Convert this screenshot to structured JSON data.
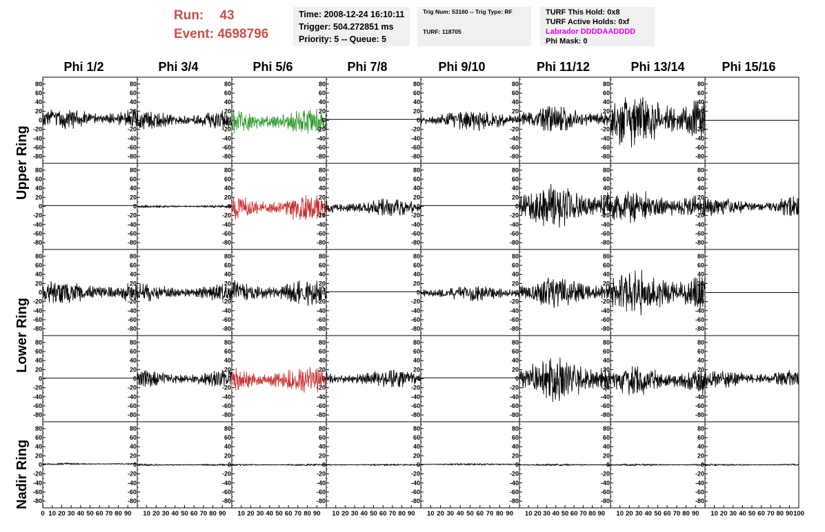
{
  "header": {
    "run_label": "Run:",
    "run_value": "43",
    "event_label": "Event:",
    "event_value": "4698796",
    "time": "Time: 2008-12-24 16:10:11",
    "trigger": "Trigger: 504.272851 ms",
    "priority": "Priority: 5 -- Queue: 5",
    "trig_line": "Trig Num: 53160 -- Trig Type: RF",
    "turf_line": "TURF: 118705",
    "turf_this_hold": "TURF This Hold: 0x8",
    "turf_active_holds": "TURF Active Holds: 0xf",
    "labrador": "Labrador DDDDAADDDD",
    "phi_mask": "Phi Mask: 0"
  },
  "chart_data": {
    "type": "line",
    "columns": [
      "Phi 1/2",
      "Phi 3/4",
      "Phi 5/6",
      "Phi 7/8",
      "Phi 9/10",
      "Phi 11/12",
      "Phi 13/14",
      "Phi 15/16"
    ],
    "rows": [
      "Upper Ring",
      "Upper Ring",
      "Lower Ring",
      "Lower Ring",
      "Nadir Ring"
    ],
    "row_labels": [
      "Upper Ring",
      "Lower Ring",
      "Nadir Ring"
    ],
    "xlim": [
      0,
      100
    ],
    "ylim": [
      -95,
      95
    ],
    "x_ticks": [
      0,
      10,
      20,
      30,
      40,
      50,
      60,
      70,
      80,
      90,
      100
    ],
    "x_tick_labels": [
      "0",
      "10",
      "20",
      "30",
      "40",
      "50",
      "60",
      "70",
      "80",
      "90",
      "100"
    ],
    "y_ticks": [
      80,
      60,
      40,
      20,
      0,
      -20,
      -40,
      -60,
      -80
    ],
    "y_tick_labels": [
      "80",
      "60",
      "40",
      "20",
      "0",
      "-20",
      "-40",
      "-60",
      "-80"
    ],
    "series_colors": {
      "normal": "#000000",
      "triggered": "#2e9a2e",
      "l2": "#c83232"
    },
    "panels": [
      {
        "row": 0,
        "col": 0,
        "amp": 20,
        "offset": 4,
        "color": "normal"
      },
      {
        "row": 0,
        "col": 1,
        "amp": 18,
        "offset": 0,
        "color": "normal"
      },
      {
        "row": 0,
        "col": 2,
        "amp": 25,
        "offset": -3,
        "color": "triggered"
      },
      {
        "row": 0,
        "col": 3,
        "amp": 0,
        "offset": 2,
        "color": "normal"
      },
      {
        "row": 0,
        "col": 4,
        "amp": 20,
        "offset": 0,
        "color": "normal"
      },
      {
        "row": 0,
        "col": 5,
        "amp": 24,
        "offset": 3,
        "color": "normal"
      },
      {
        "row": 0,
        "col": 6,
        "amp": 52,
        "offset": 0,
        "color": "normal"
      },
      {
        "row": 0,
        "col": 7,
        "amp": 0,
        "offset": 0,
        "color": "normal"
      },
      {
        "row": 1,
        "col": 0,
        "amp": 0,
        "offset": 2,
        "color": "normal"
      },
      {
        "row": 1,
        "col": 1,
        "amp": 3,
        "offset": 0,
        "color": "normal"
      },
      {
        "row": 1,
        "col": 2,
        "amp": 25,
        "offset": -3,
        "color": "l2"
      },
      {
        "row": 1,
        "col": 3,
        "amp": 17,
        "offset": -3,
        "color": "normal"
      },
      {
        "row": 1,
        "col": 4,
        "amp": 0,
        "offset": 2,
        "color": "normal"
      },
      {
        "row": 1,
        "col": 5,
        "amp": 45,
        "offset": 0,
        "color": "normal"
      },
      {
        "row": 1,
        "col": 6,
        "amp": 32,
        "offset": -2,
        "color": "normal"
      },
      {
        "row": 1,
        "col": 7,
        "amp": 18,
        "offset": 0,
        "color": "normal"
      },
      {
        "row": 2,
        "col": 0,
        "amp": 22,
        "offset": 0,
        "color": "normal"
      },
      {
        "row": 2,
        "col": 1,
        "amp": 16,
        "offset": 0,
        "color": "normal"
      },
      {
        "row": 2,
        "col": 2,
        "amp": 24,
        "offset": 0,
        "color": "normal"
      },
      {
        "row": 2,
        "col": 3,
        "amp": 0,
        "offset": 2,
        "color": "normal"
      },
      {
        "row": 2,
        "col": 4,
        "amp": 15,
        "offset": -2,
        "color": "normal"
      },
      {
        "row": 2,
        "col": 5,
        "amp": 28,
        "offset": 0,
        "color": "normal"
      },
      {
        "row": 2,
        "col": 6,
        "amp": 42,
        "offset": 0,
        "color": "normal"
      },
      {
        "row": 2,
        "col": 7,
        "amp": 0,
        "offset": 0,
        "color": "normal"
      },
      {
        "row": 3,
        "col": 0,
        "amp": 0,
        "offset": 1,
        "color": "normal"
      },
      {
        "row": 3,
        "col": 1,
        "amp": 17,
        "offset": 0,
        "color": "normal"
      },
      {
        "row": 3,
        "col": 2,
        "amp": 24,
        "offset": -3,
        "color": "l2"
      },
      {
        "row": 3,
        "col": 3,
        "amp": 17,
        "offset": 0,
        "color": "normal"
      },
      {
        "row": 3,
        "col": 4,
        "amp": 0,
        "offset": 2,
        "color": "normal"
      },
      {
        "row": 3,
        "col": 5,
        "amp": 44,
        "offset": 0,
        "color": "normal"
      },
      {
        "row": 3,
        "col": 6,
        "amp": 28,
        "offset": -5,
        "color": "normal"
      },
      {
        "row": 3,
        "col": 7,
        "amp": 18,
        "offset": 0,
        "color": "normal"
      },
      {
        "row": 4,
        "col": 0,
        "amp": 2,
        "offset": 2,
        "color": "normal"
      },
      {
        "row": 4,
        "col": 1,
        "amp": 2,
        "offset": 0,
        "color": "normal"
      },
      {
        "row": 4,
        "col": 2,
        "amp": 2,
        "offset": 0,
        "color": "normal"
      },
      {
        "row": 4,
        "col": 3,
        "amp": 2,
        "offset": 0,
        "color": "normal"
      },
      {
        "row": 4,
        "col": 4,
        "amp": 2,
        "offset": 1,
        "color": "normal"
      },
      {
        "row": 4,
        "col": 5,
        "amp": 2,
        "offset": 0,
        "color": "normal"
      },
      {
        "row": 4,
        "col": 6,
        "amp": 2,
        "offset": 0,
        "color": "normal"
      },
      {
        "row": 4,
        "col": 7,
        "amp": 2,
        "offset": 0,
        "color": "normal"
      }
    ]
  }
}
